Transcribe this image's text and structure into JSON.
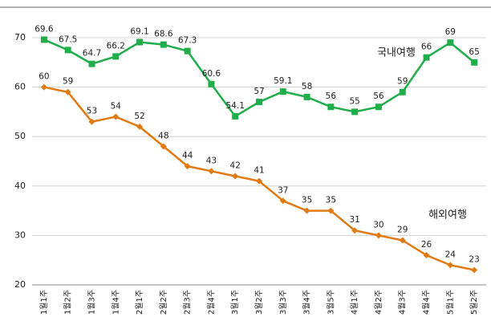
{
  "chart_data": {
    "type": "line",
    "categories": [
      "1월1주",
      "1월2주",
      "1월3주",
      "1월4주",
      "2월1주",
      "2월2주",
      "2월3주",
      "2월4주",
      "3월1주",
      "3월2주",
      "3월3주",
      "3월4주",
      "3월5주",
      "4월1주",
      "4월2주",
      "4월3주",
      "4월4주",
      "5월1주",
      "5월2주"
    ],
    "series": [
      {
        "name": "국내여행",
        "color": "#1fae4a",
        "marker": "square",
        "values": [
          69.6,
          67.5,
          64.7,
          66.2,
          69.1,
          68.6,
          67.3,
          60.6,
          54.1,
          57,
          59.1,
          58,
          56,
          55,
          56,
          59,
          66,
          69,
          65
        ]
      },
      {
        "name": "해외여행",
        "color": "#e27a12",
        "marker": "diamond",
        "values": [
          60,
          59,
          53,
          54,
          52,
          48,
          44,
          43,
          42,
          41,
          37,
          35,
          35,
          31,
          30,
          29,
          26,
          24,
          23
        ]
      }
    ],
    "ylim": [
      20,
      76
    ],
    "yticks": [
      20,
      30,
      40,
      50,
      60,
      70
    ],
    "grid": true
  }
}
